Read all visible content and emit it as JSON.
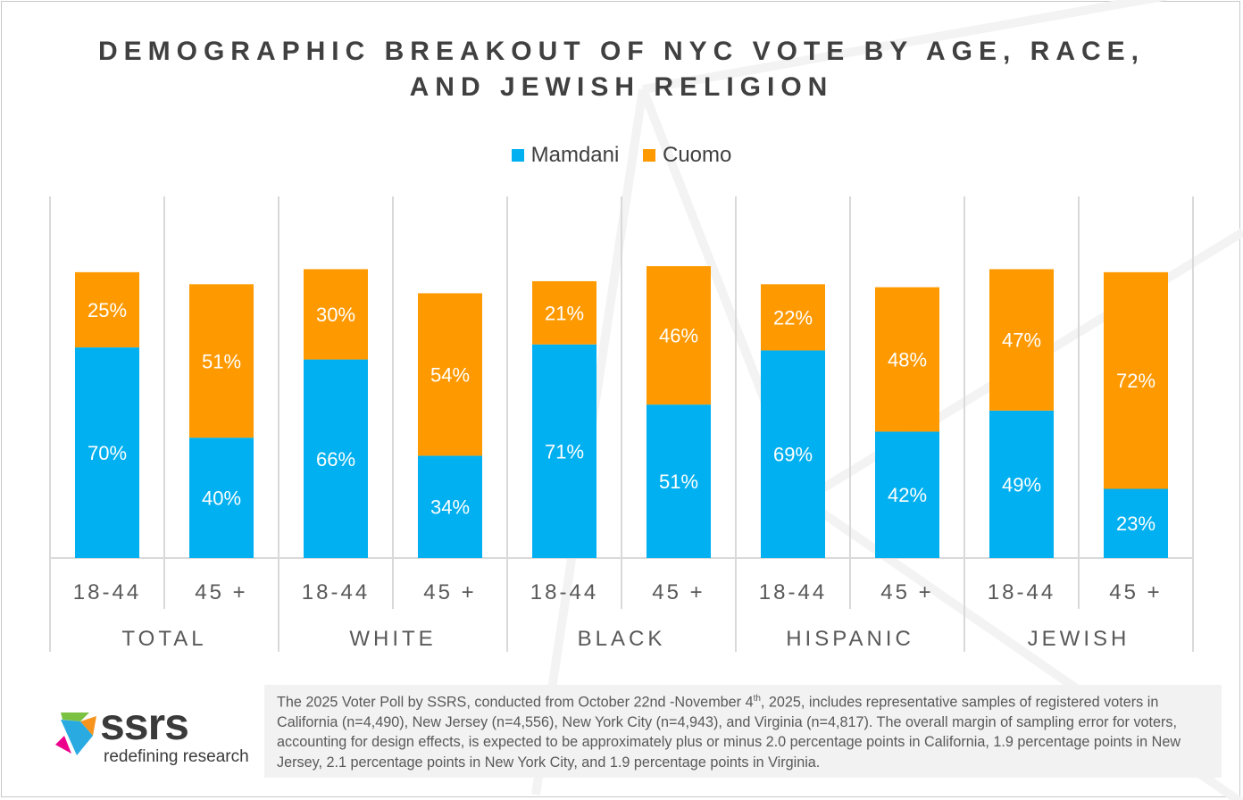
{
  "chart_data": {
    "type": "bar",
    "stacked": true,
    "title": "DEMOGRAPHIC BREAKOUT OF NYC VOTE BY AGE, RACE, AND JEWISH RELIGION",
    "title_lines": [
      "DEMOGRAPHIC BREAKOUT OF NYC VOTE BY AGE, RACE,",
      "AND JEWISH RELIGION"
    ],
    "legend_position": "top",
    "groups": [
      "TOTAL",
      "WHITE",
      "BLACK",
      "HISPANIC",
      "JEWISH"
    ],
    "categories": [
      "18-44",
      "45+",
      "18-44",
      "45+",
      "18-44",
      "45+",
      "18-44",
      "45+",
      "18-44",
      "45+"
    ],
    "series": [
      {
        "name": "Mamdani",
        "color": "#00b0f0",
        "values": [
          70,
          40,
          66,
          34,
          71,
          51,
          69,
          42,
          49,
          23
        ]
      },
      {
        "name": "Cuomo",
        "color": "#ff9900",
        "values": [
          25,
          51,
          30,
          54,
          21,
          46,
          22,
          48,
          47,
          72
        ]
      }
    ],
    "ylim": [
      0,
      100
    ],
    "grid": false,
    "xlabel": "",
    "ylabel": ""
  },
  "footnote": {
    "before_sup": "The 2025 Voter Poll by SSRS, conducted from October 22nd -November 4",
    "sup": "th",
    "after_sup": ", 2025, includes representative samples of registered voters in California (n=4,490), New Jersey (n=4,556), New York City (n=4,943), and Virginia (n=4,817). The overall margin of sampling error for voters, accounting for design effects, is expected to be approximately plus or minus 2.0 percentage points in California, 1.9 percentage points in New Jersey, 2.1 percentage points in New York City, and 1.9 percentage points in Virginia."
  },
  "logo": {
    "word": "ssrs",
    "tagline": "redefining research"
  }
}
